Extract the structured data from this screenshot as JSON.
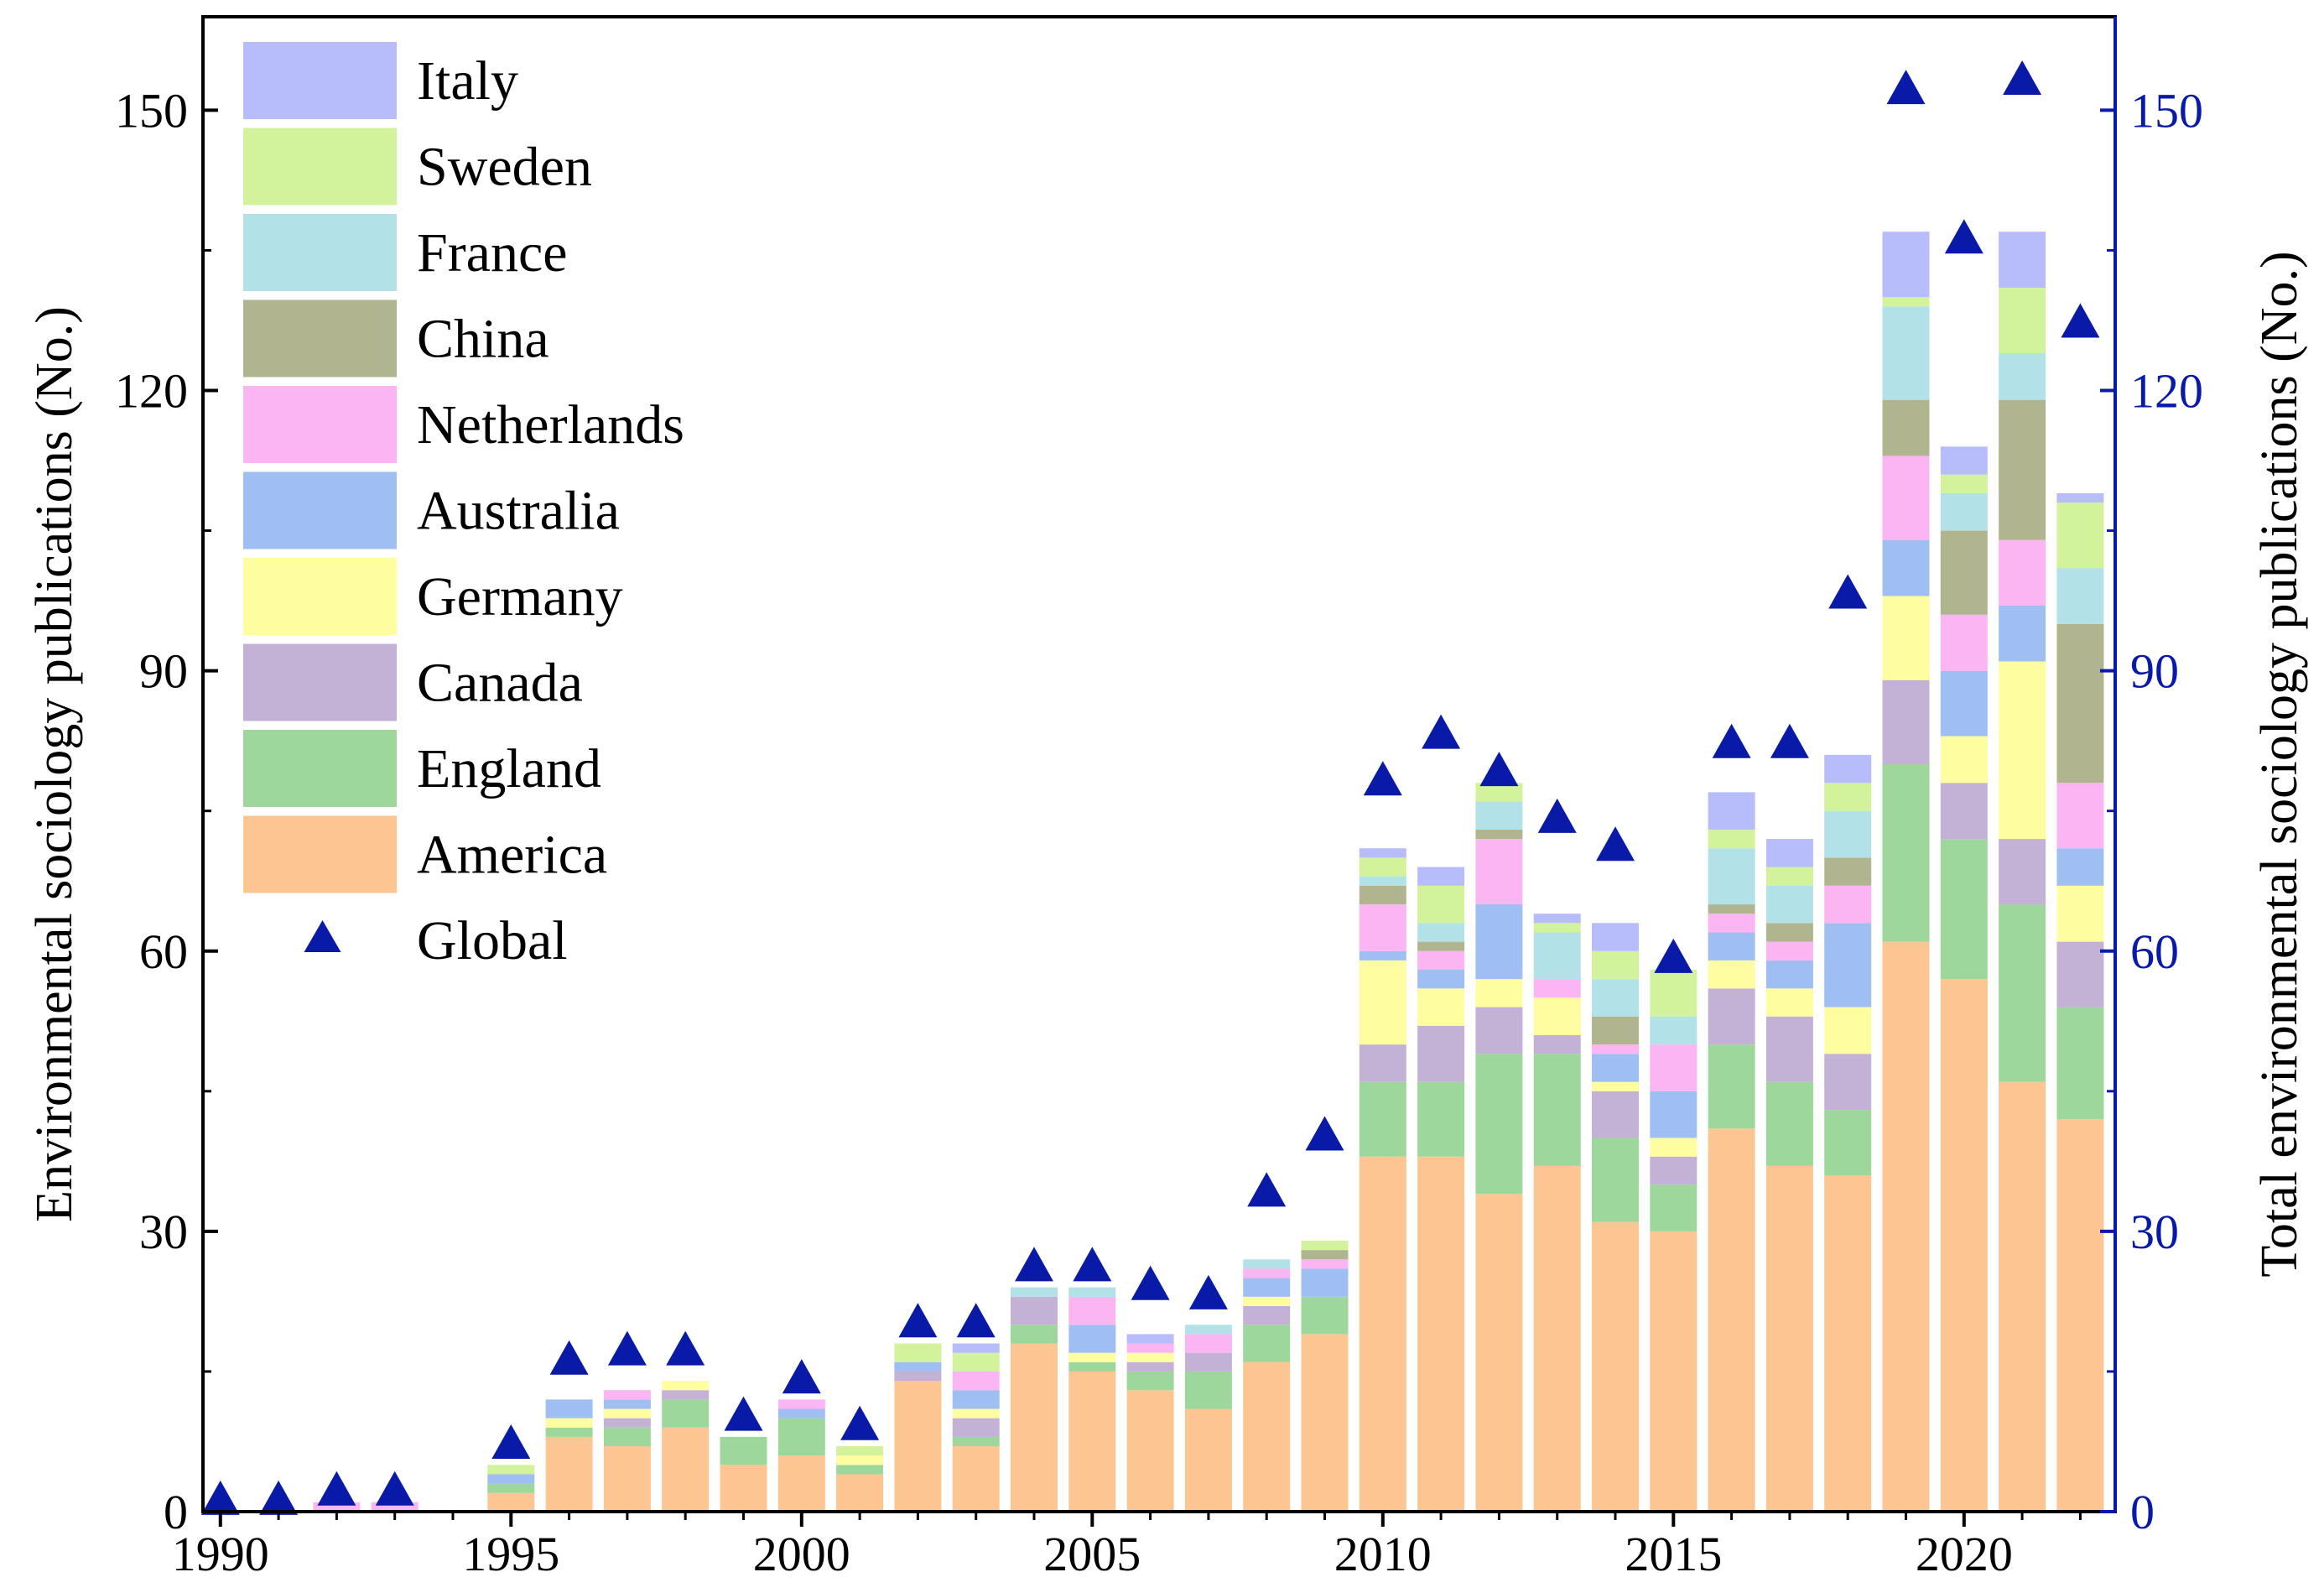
{
  "chart_data": {
    "type": "bar",
    "stacked": true,
    "xlabel": "",
    "ylabel": "Environmental sociology publications (No.)",
    "y2label": "Total environmental sociology publications (No.)",
    "ylim": [
      0,
      160
    ],
    "y2lim": [
      0,
      160
    ],
    "xlim": [
      1989.7,
      2022.6
    ],
    "x_ticks": [
      1990,
      1995,
      2000,
      2005,
      2010,
      2015,
      2020
    ],
    "y_ticks": [
      0,
      30,
      60,
      90,
      120,
      150
    ],
    "legend_position": "top-left",
    "axis_color_right": "#0a1aa8",
    "years": [
      1990,
      1991,
      1992,
      1993,
      1994,
      1995,
      1996,
      1997,
      1998,
      1999,
      2000,
      2001,
      2002,
      2003,
      2004,
      2005,
      2006,
      2007,
      2008,
      2009,
      2010,
      2011,
      2012,
      2013,
      2014,
      2015,
      2016,
      2017,
      2018,
      2019,
      2020,
      2021,
      2022
    ],
    "series": [
      {
        "name": "America",
        "color": "#fcc592",
        "values": [
          0,
          0,
          0,
          0,
          0,
          2,
          8,
          7,
          9,
          5,
          6,
          4,
          14,
          7,
          18,
          15,
          13,
          11,
          16,
          19,
          38,
          38,
          34,
          37,
          31,
          30,
          41,
          37,
          36,
          61,
          57,
          46,
          42
        ]
      },
      {
        "name": "England",
        "color": "#9ed79b",
        "values": [
          0,
          0,
          0,
          0,
          0,
          1,
          1,
          2,
          3,
          3,
          4,
          1,
          0,
          1,
          2,
          1,
          2,
          4,
          4,
          4,
          8,
          8,
          15,
          12,
          9,
          5,
          9,
          9,
          7,
          19,
          15,
          19,
          12
        ]
      },
      {
        "name": "Canada",
        "color": "#c3b1d6",
        "values": [
          0,
          0,
          0,
          0,
          0,
          0,
          0,
          1,
          1,
          0,
          0,
          0,
          1,
          2,
          3,
          0,
          1,
          2,
          2,
          0,
          4,
          6,
          5,
          2,
          5,
          3,
          6,
          7,
          6,
          9,
          6,
          7,
          7
        ]
      },
      {
        "name": "Germany",
        "color": "#fefea0",
        "values": [
          0,
          0,
          0,
          0,
          0,
          0,
          1,
          1,
          1,
          0,
          0,
          1,
          0,
          1,
          0,
          1,
          1,
          0,
          1,
          0,
          9,
          4,
          3,
          4,
          1,
          2,
          3,
          3,
          5,
          9,
          5,
          19,
          6
        ]
      },
      {
        "name": "Australia",
        "color": "#9fbef2",
        "values": [
          0,
          0,
          0,
          0,
          0,
          1,
          2,
          1,
          0,
          0,
          1,
          0,
          1,
          2,
          0,
          3,
          0,
          0,
          2,
          3,
          1,
          2,
          8,
          0,
          3,
          5,
          3,
          3,
          9,
          6,
          7,
          6,
          4
        ]
      },
      {
        "name": "Netherlands",
        "color": "#fbb5f3",
        "values": [
          0,
          0,
          1,
          1,
          0,
          0,
          0,
          1,
          0,
          0,
          1,
          0,
          0,
          2,
          0,
          3,
          1,
          2,
          1,
          1,
          5,
          2,
          7,
          2,
          1,
          5,
          2,
          2,
          4,
          9,
          6,
          7,
          7
        ]
      },
      {
        "name": "China",
        "color": "#b1b58f",
        "values": [
          0,
          0,
          0,
          0,
          0,
          0,
          0,
          0,
          0,
          0,
          0,
          0,
          0,
          0,
          0,
          0,
          0,
          0,
          0,
          1,
          2,
          1,
          1,
          0,
          3,
          0,
          1,
          2,
          3,
          6,
          9,
          15,
          17
        ]
      },
      {
        "name": "France",
        "color": "#b2e2e7",
        "values": [
          0,
          0,
          0,
          0,
          0,
          0,
          0,
          0,
          0,
          0,
          0,
          0,
          0,
          0,
          1,
          1,
          0,
          1,
          1,
          0,
          1,
          2,
          3,
          5,
          4,
          3,
          6,
          4,
          5,
          10,
          4,
          5,
          6
        ]
      },
      {
        "name": "Sweden",
        "color": "#d2f29b",
        "values": [
          0,
          0,
          0,
          0,
          0,
          1,
          0,
          0,
          0,
          0,
          0,
          1,
          2,
          2,
          0,
          0,
          0,
          0,
          0,
          1,
          2,
          4,
          2,
          1,
          3,
          5,
          2,
          2,
          3,
          1,
          2,
          7,
          7
        ]
      },
      {
        "name": "Italy",
        "color": "#b7bcfb",
        "values": [
          0,
          0,
          0,
          0,
          0,
          0,
          0,
          0,
          0,
          0,
          0,
          0,
          0,
          1,
          0,
          0,
          1,
          0,
          0,
          0,
          1,
          2,
          0,
          1,
          3,
          0,
          4,
          3,
          3,
          7,
          3,
          6,
          1
        ]
      }
    ],
    "global": {
      "name": "Global",
      "color": "#0a1aa8",
      "values": [
        1,
        1,
        2,
        2,
        0,
        7,
        16,
        17,
        17,
        10,
        14,
        9,
        20,
        20,
        26,
        26,
        24,
        23,
        34,
        40,
        78,
        83,
        79,
        74,
        71,
        59,
        82,
        82,
        98,
        152,
        136,
        153,
        127
      ]
    }
  }
}
